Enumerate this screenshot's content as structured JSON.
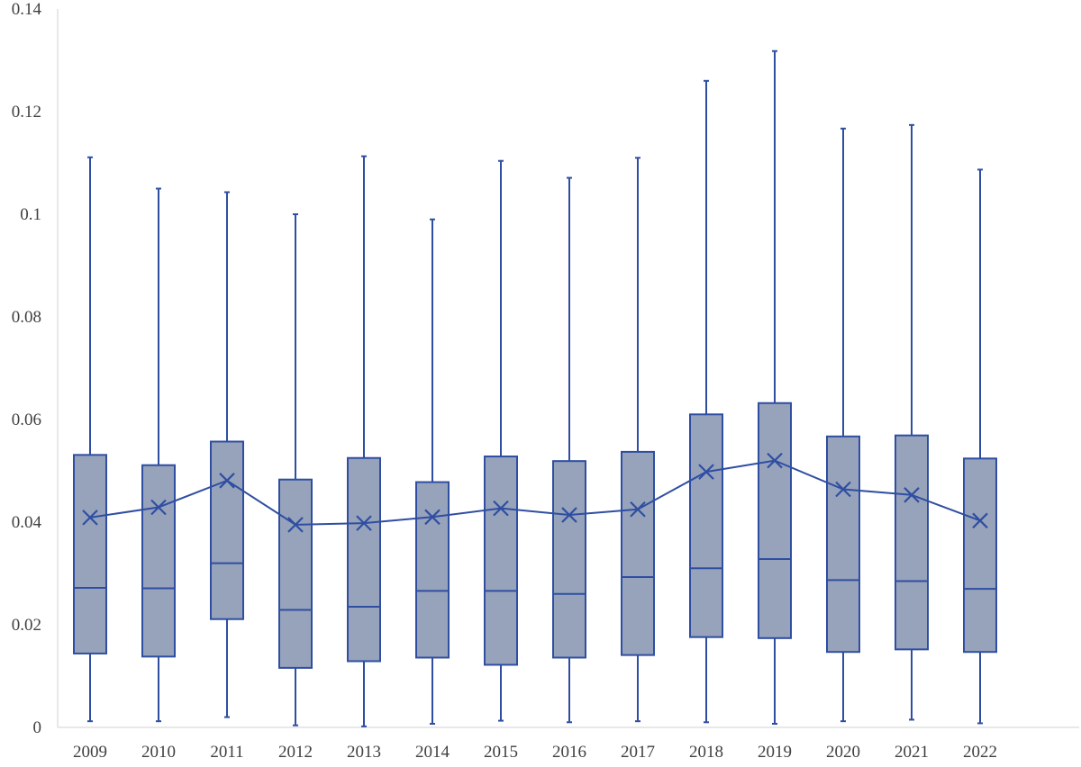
{
  "chart_data": {
    "type": "boxplot",
    "title": "",
    "xlabel": "",
    "ylabel": "",
    "ylim": [
      0,
      0.14
    ],
    "yticks": [
      0,
      0.02,
      0.04,
      0.06,
      0.08,
      0.1,
      0.12,
      0.14
    ],
    "ytick_labels": [
      "0",
      "0.02",
      "0.04",
      "0.06",
      "0.08",
      "0.1",
      "0.12",
      "0.14"
    ],
    "grid": false,
    "legend": "none",
    "mean_line": true,
    "colors": {
      "box_fill": "#97a3bb",
      "box_stroke": "#2f4ea2",
      "axis": "#d9d9d9",
      "label": "#404040"
    },
    "categories": [
      "2009",
      "2010",
      "2011",
      "2012",
      "2013",
      "2014",
      "2015",
      "2016",
      "2017",
      "2018",
      "2019",
      "2020",
      "2021",
      "2022"
    ],
    "boxes": [
      {
        "min": 0.0012,
        "q1": 0.0144,
        "median": 0.0272,
        "q3": 0.0531,
        "max": 0.1111,
        "mean": 0.0409
      },
      {
        "min": 0.0012,
        "q1": 0.0138,
        "median": 0.0271,
        "q3": 0.0511,
        "max": 0.105,
        "mean": 0.0429
      },
      {
        "min": 0.002,
        "q1": 0.0211,
        "median": 0.032,
        "q3": 0.0557,
        "max": 0.1043,
        "mean": 0.0481
      },
      {
        "min": 0.0004,
        "q1": 0.0116,
        "median": 0.0229,
        "q3": 0.0483,
        "max": 0.1,
        "mean": 0.0395
      },
      {
        "min": 0.0002,
        "q1": 0.0129,
        "median": 0.0235,
        "q3": 0.0525,
        "max": 0.1113,
        "mean": 0.0398
      },
      {
        "min": 0.0007,
        "q1": 0.0136,
        "median": 0.0266,
        "q3": 0.0478,
        "max": 0.099,
        "mean": 0.041
      },
      {
        "min": 0.0013,
        "q1": 0.0122,
        "median": 0.0266,
        "q3": 0.0528,
        "max": 0.1104,
        "mean": 0.0427
      },
      {
        "min": 0.001,
        "q1": 0.0136,
        "median": 0.026,
        "q3": 0.0519,
        "max": 0.1071,
        "mean": 0.0414
      },
      {
        "min": 0.0012,
        "q1": 0.0141,
        "median": 0.0293,
        "q3": 0.0537,
        "max": 0.111,
        "mean": 0.0425
      },
      {
        "min": 0.001,
        "q1": 0.0176,
        "median": 0.031,
        "q3": 0.061,
        "max": 0.126,
        "mean": 0.0498
      },
      {
        "min": 0.0007,
        "q1": 0.0174,
        "median": 0.0328,
        "q3": 0.0632,
        "max": 0.1318,
        "mean": 0.052
      },
      {
        "min": 0.0012,
        "q1": 0.0147,
        "median": 0.0287,
        "q3": 0.0567,
        "max": 0.1167,
        "mean": 0.0464
      },
      {
        "min": 0.0015,
        "q1": 0.0152,
        "median": 0.0285,
        "q3": 0.0569,
        "max": 0.1174,
        "mean": 0.0453
      },
      {
        "min": 0.0008,
        "q1": 0.0147,
        "median": 0.027,
        "q3": 0.0524,
        "max": 0.1087,
        "mean": 0.0403
      }
    ]
  }
}
